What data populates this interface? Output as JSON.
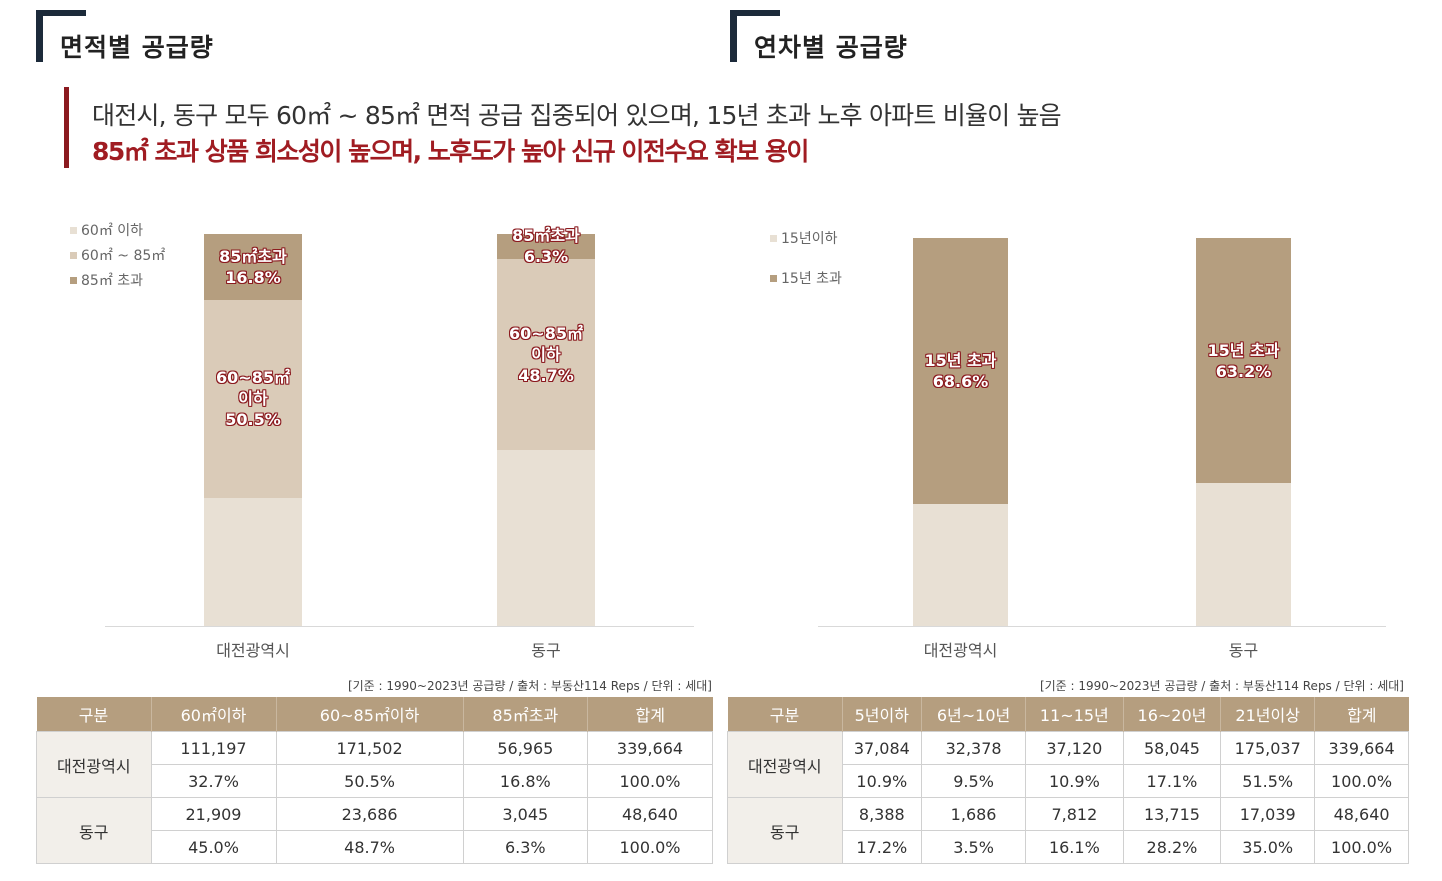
{
  "left_section": {
    "title": "면적별 공급량"
  },
  "right_section": {
    "title": "연차별 공급량"
  },
  "callout": {
    "line1": "대전시,  동구  모두  60㎡ ~ 85㎡ 면적  공급  집중되어  있으며,  15년  초과  노후  아파트  비율이  높음",
    "line2": "85㎡ 초과 상품 희소성이 높으며, 노후도가 높아 신규 이전수요 확보 용이"
  },
  "colors": {
    "light": "#e8e0d4",
    "mid": "#dacbb8",
    "dark": "#b59e7f",
    "label_outline": "#8b1a1f",
    "accent": "#a01c22"
  },
  "chart_data": [
    {
      "type": "bar",
      "stacked": true,
      "categories": [
        "대전광역시",
        "동구"
      ],
      "legend": [
        "60㎡ 이하",
        "60㎡ ~ 85㎡",
        "85㎡ 초과"
      ],
      "legend_position": "top-left",
      "series": [
        {
          "name": "60㎡ 이하",
          "values": [
            32.7,
            45.0
          ]
        },
        {
          "name": "60㎡ ~ 85㎡",
          "values": [
            50.5,
            48.7
          ]
        },
        {
          "name": "85㎡ 초과",
          "values": [
            16.8,
            6.3
          ]
        }
      ],
      "data_labels": [
        {
          "category": 0,
          "series": 2,
          "lines": [
            "85㎡초과",
            "16.8%"
          ]
        },
        {
          "category": 0,
          "series": 1,
          "lines": [
            "60~85㎡",
            "이하",
            "50.5%"
          ]
        },
        {
          "category": 1,
          "series": 2,
          "lines": [
            "85㎡초과",
            "6.3%"
          ]
        },
        {
          "category": 1,
          "series": 1,
          "lines": [
            "60~85㎡",
            "이하",
            "48.7%"
          ]
        }
      ],
      "ylim": [
        0,
        100
      ],
      "grid": false
    },
    {
      "type": "bar",
      "stacked": true,
      "categories": [
        "대전광역시",
        "동구"
      ],
      "legend": [
        "15년이하",
        "15년 초과"
      ],
      "legend_position": "top-left",
      "series": [
        {
          "name": "15년이하",
          "values": [
            31.4,
            36.8
          ]
        },
        {
          "name": "15년 초과",
          "values": [
            68.6,
            63.2
          ]
        }
      ],
      "data_labels": [
        {
          "category": 0,
          "series": 1,
          "lines": [
            "15년 초과",
            "68.6%"
          ]
        },
        {
          "category": 1,
          "series": 1,
          "lines": [
            "15년 초과",
            "63.2%"
          ]
        }
      ],
      "ylim": [
        0,
        100
      ],
      "grid": false
    }
  ],
  "left_note": "[기준 : 1990~2023년 공급량 / 출처 : 부동산114 Reps   / 단위 : 세대]",
  "right_note": "[기준 : 1990~2023년 공급량 / 출처 : 부동산114 Reps   / 단위 : 세대]",
  "left_table": {
    "headers": [
      "구분",
      "60㎡이하",
      "60~85㎡이하",
      "85㎡초과",
      "합계"
    ],
    "groups": [
      {
        "name": "대전광역시",
        "rows": [
          [
            "111,197",
            "171,502",
            "56,965",
            "339,664"
          ],
          [
            "32.7%",
            "50.5%",
            "16.8%",
            "100.0%"
          ]
        ]
      },
      {
        "name": "동구",
        "rows": [
          [
            "21,909",
            "23,686",
            "3,045",
            "48,640"
          ],
          [
            "45.0%",
            "48.7%",
            "6.3%",
            "100.0%"
          ]
        ]
      }
    ]
  },
  "right_table": {
    "headers": [
      "구분",
      "5년이하",
      "6년~10년",
      "11~15년",
      "16~20년",
      "21년이상",
      "합계"
    ],
    "groups": [
      {
        "name": "대전광역시",
        "rows": [
          [
            "37,084",
            "32,378",
            "37,120",
            "58,045",
            "175,037",
            "339,664"
          ],
          [
            "10.9%",
            "9.5%",
            "10.9%",
            "17.1%",
            "51.5%",
            "100.0%"
          ]
        ]
      },
      {
        "name": "동구",
        "rows": [
          [
            "8,388",
            "1,686",
            "7,812",
            "13,715",
            "17,039",
            "48,640"
          ],
          [
            "17.2%",
            "3.5%",
            "16.1%",
            "28.2%",
            "35.0%",
            "100.0%"
          ]
        ]
      }
    ]
  }
}
